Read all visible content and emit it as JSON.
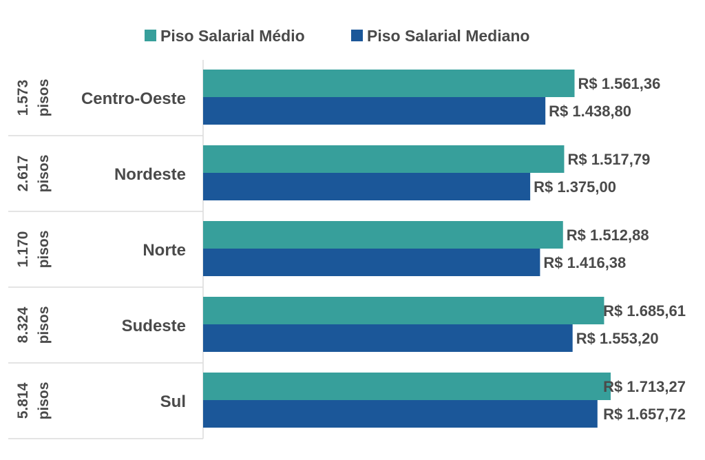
{
  "chart_data": {
    "type": "bar",
    "orientation": "horizontal",
    "legend_position": "top",
    "categories": [
      "Centro-Oeste",
      "Nordeste",
      "Norte",
      "Sudeste",
      "Sul"
    ],
    "group_labels": [
      [
        "1.573",
        "pisos"
      ],
      [
        "2.617",
        "pisos"
      ],
      [
        "1.170",
        "pisos"
      ],
      [
        "8.324",
        "pisos"
      ],
      [
        "5.814",
        "pisos"
      ]
    ],
    "series": [
      {
        "name": "Piso Salarial Médio",
        "color": "#379f9b",
        "values": [
          1561.36,
          1517.79,
          1512.88,
          1685.61,
          1713.27
        ],
        "labels": [
          "R$ 1.561,36",
          "R$ 1.517,79",
          "R$ 1.512,88",
          "R$ 1.685,61",
          "R$ 1.713,27"
        ]
      },
      {
        "name": "Piso Salarial Mediano",
        "color": "#1b5799",
        "values": [
          1438.8,
          1375.0,
          1416.38,
          1553.2,
          1657.72
        ],
        "labels": [
          "R$ 1.438,80",
          "R$ 1.375,00",
          "R$ 1.416,38",
          "R$ 1.553,20",
          "R$ 1.657,72"
        ]
      }
    ],
    "xlim": [
      0,
      1713.27
    ],
    "grid": false
  }
}
